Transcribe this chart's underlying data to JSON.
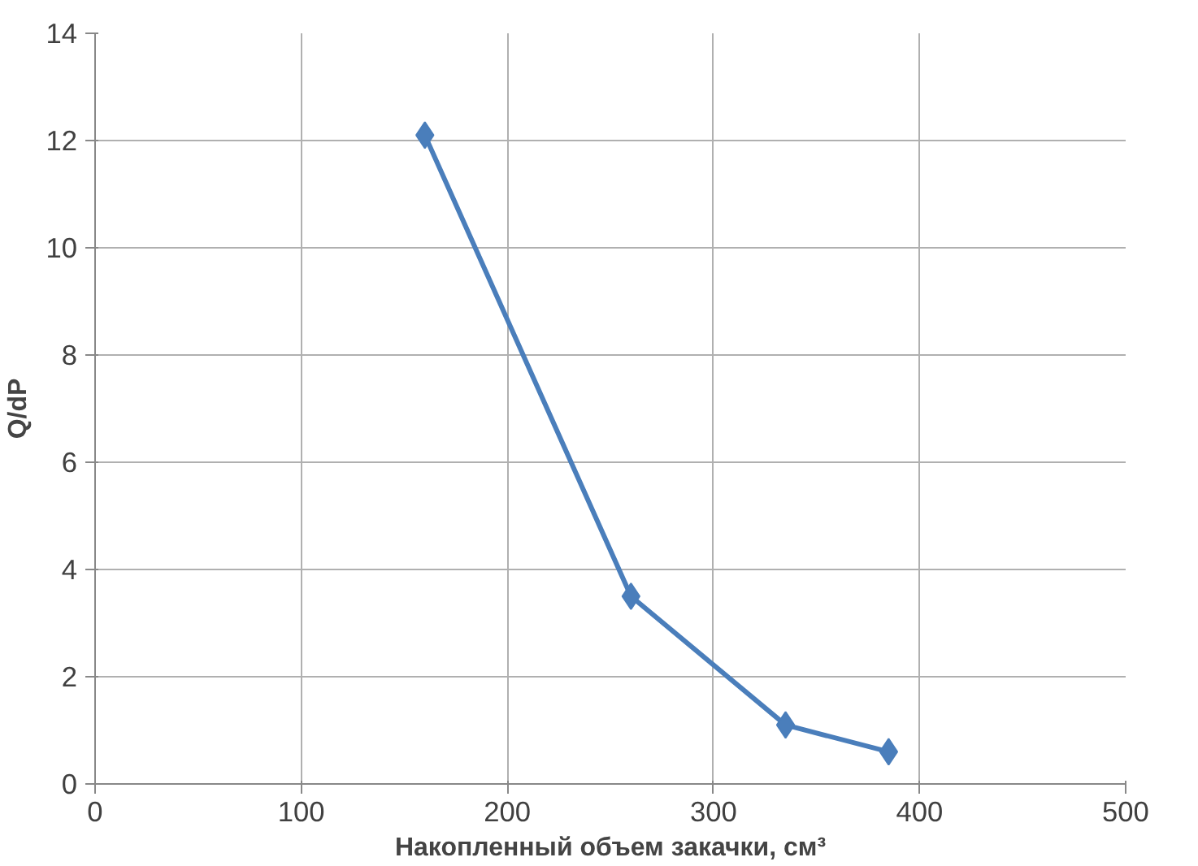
{
  "chart_data": {
    "type": "line",
    "xlabel": "Накопленный объем закачки, см³",
    "ylabel": "Q/dP",
    "x": [
      160,
      260,
      335,
      385
    ],
    "series": [
      {
        "color": "#4a7ebb",
        "values": [
          12.1,
          3.5,
          1.1,
          0.6
        ]
      }
    ],
    "xlim": [
      0,
      500
    ],
    "xticks": [
      0,
      100,
      200,
      300,
      400,
      500
    ],
    "ylim": [
      0,
      14
    ],
    "yticks": [
      0,
      2,
      4,
      6,
      8,
      10,
      12,
      14
    ],
    "grid": true,
    "marker": "diamond",
    "line_style": "solid"
  }
}
